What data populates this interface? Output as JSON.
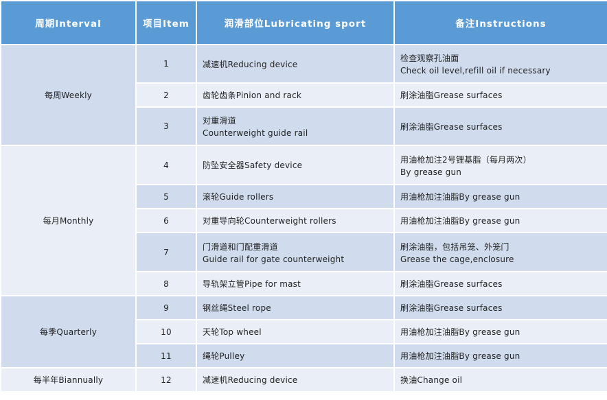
{
  "headers": {
    "interval": "周期Interval",
    "item": "项目Item",
    "sport": "润滑部位Lubricating sport",
    "instructions": "备注Instructions"
  },
  "intervals": {
    "weekly": "每周Weekly",
    "monthly": "每月Monthly",
    "quarterly": "每季Quarterly",
    "biannually": "每半年Biannually"
  },
  "rows": [
    {
      "item": "1",
      "sport": "减速机Reducing device",
      "sport2": "",
      "inst": "检查观察孔油面",
      "inst2": "Check oil level,refill oil if necessary"
    },
    {
      "item": "2",
      "sport": "齿轮齿条Pinion and rack",
      "sport2": "",
      "inst": "刷涂油脂Grease surfaces",
      "inst2": ""
    },
    {
      "item": "3",
      "sport": "对重滑道",
      "sport2": "Counterweight guide rail",
      "inst": "刷涂油脂Grease surfaces",
      "inst2": ""
    },
    {
      "item": "4",
      "sport": "防坠安全器Safety device",
      "sport2": "",
      "inst": "用油枪加注2号锂基脂（每月两次）",
      "inst2": "By grease gun"
    },
    {
      "item": "5",
      "sport": "滚轮Guide rollers",
      "sport2": "",
      "inst": "用油枪加注油脂By grease gun",
      "inst2": ""
    },
    {
      "item": "6",
      "sport": "对重导向轮Counterweight rollers",
      "sport2": "",
      "inst": "用油枪加注油脂By grease gun",
      "inst2": ""
    },
    {
      "item": "7",
      "sport": "门滑道和门配重滑道",
      "sport2": "Guide rail for gate counterweight",
      "inst": "刷涂油脂，包括吊笼、外笼门",
      "inst2": "Grease the cage,enclosure"
    },
    {
      "item": "8",
      "sport": "导轨架立管Pipe for mast",
      "sport2": "",
      "inst": "刷涂油脂Grease surfaces",
      "inst2": ""
    },
    {
      "item": "9",
      "sport": "钢丝绳Steel rope",
      "sport2": "",
      "inst": "刷涂油脂Grease surfaces",
      "inst2": ""
    },
    {
      "item": "10",
      "sport": "天轮Top wheel",
      "sport2": "",
      "inst": "用油枪加注油脂By grease gun",
      "inst2": ""
    },
    {
      "item": "11",
      "sport": "绳轮Pulley",
      "sport2": "",
      "inst": "用油枪加注油脂By grease gun",
      "inst2": ""
    },
    {
      "item": "12",
      "sport": "减速机Reducing device",
      "sport2": "",
      "inst": "换油Change oil",
      "inst2": ""
    }
  ],
  "colors": {
    "header": "#5b9bd5",
    "row_dark": "#d0dcee",
    "row_light": "#e9eef7"
  }
}
